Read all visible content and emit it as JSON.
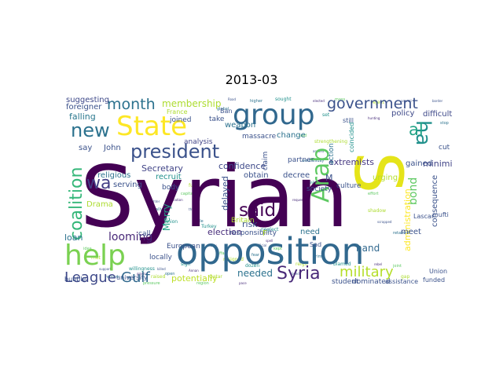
{
  "title": "2013-03",
  "palette": {
    "dark_purple": "#440154",
    "purple": "#472c7a",
    "indigo": "#3b528b",
    "blue": "#2c728e",
    "teal": "#21918c",
    "green": "#28ae80",
    "light_green": "#5ec962",
    "lime": "#addc30",
    "yellow": "#fde725"
  },
  "words": [
    {
      "text": "Syrian",
      "color": "#440154"
    },
    {
      "text": "opposition",
      "color": "#31688e"
    },
    {
      "text": "president",
      "color": "#3b528b"
    },
    {
      "text": "group",
      "color": "#31688e"
    },
    {
      "text": "State",
      "color": "#fde725"
    },
    {
      "text": "help",
      "color": "#7ad151"
    },
    {
      "text": "new",
      "color": "#2c728e"
    },
    {
      "text": "S",
      "color": "#e5e419"
    },
    {
      "text": "Arab",
      "color": "#5ec962"
    },
    {
      "text": "ha",
      "color": "#21918c"
    },
    {
      "text": "government",
      "color": "#3b528b"
    },
    {
      "text": "month",
      "color": "#2c728e"
    },
    {
      "text": "al",
      "color": "#20a386"
    },
    {
      "text": "said",
      "color": "#440154"
    },
    {
      "text": "coalition",
      "color": "#35b779"
    },
    {
      "text": "wa",
      "color": "#433e85"
    },
    {
      "text": "Syria",
      "color": "#482878"
    },
    {
      "text": "military",
      "color": "#b5de2b"
    },
    {
      "text": "League",
      "color": "#3e4989"
    },
    {
      "text": "Gulf",
      "color": "#31688e"
    },
    {
      "text": "membership",
      "color": "#addc30"
    },
    {
      "text": "bond",
      "color": "#5ec962"
    },
    {
      "text": "delayed",
      "color": "#3b528b"
    },
    {
      "text": "Merry",
      "color": "#20a386"
    },
    {
      "text": "looming",
      "color": "#482878"
    },
    {
      "text": "election",
      "color": "#472c7a"
    },
    {
      "text": "hand",
      "color": "#31688e"
    },
    {
      "text": "needed",
      "color": "#2c728e"
    },
    {
      "text": "potentially",
      "color": "#bddf26"
    },
    {
      "text": "Secretary",
      "color": "#414487"
    },
    {
      "text": "confidence",
      "color": "#3e4989"
    },
    {
      "text": "extremists",
      "color": "#453781"
    },
    {
      "text": "minimize",
      "color": "#414487"
    },
    {
      "text": "falling",
      "color": "#2a788e"
    },
    {
      "text": "suggesting",
      "color": "#3e4989"
    },
    {
      "text": "policy",
      "color": "#3e4989"
    },
    {
      "text": "difficult",
      "color": "#3e4989"
    },
    {
      "text": "change",
      "color": "#2c728e"
    },
    {
      "text": "weapon",
      "color": "#2c728e"
    },
    {
      "text": "massacre",
      "color": "#3b528b"
    },
    {
      "text": "take",
      "color": "#3b528b"
    },
    {
      "text": "John",
      "color": "#3b528b"
    },
    {
      "text": "say",
      "color": "#3b528b"
    },
    {
      "text": "analysis",
      "color": "#414487"
    },
    {
      "text": "religious",
      "color": "#2c728e"
    },
    {
      "text": "recruit",
      "color": "#21918c"
    },
    {
      "text": "serving",
      "color": "#3b528b"
    },
    {
      "text": "Drama",
      "color": "#addc30"
    },
    {
      "text": "body",
      "color": "#3b528b"
    },
    {
      "text": "decree",
      "color": "#3b528b"
    },
    {
      "text": "obtain",
      "color": "#3b528b"
    },
    {
      "text": "society",
      "color": "#3b528b"
    },
    {
      "text": "culture",
      "color": "#3b528b"
    },
    {
      "text": "risk",
      "color": "#3b528b"
    },
    {
      "text": "responsibility",
      "color": "#3b528b"
    },
    {
      "text": "claim",
      "color": "#3b528b"
    },
    {
      "text": "partner",
      "color": "#3b528b"
    },
    {
      "text": "gained",
      "color": "#3b528b"
    },
    {
      "text": "urging",
      "color": "#b5de2b"
    },
    {
      "text": "consequence",
      "color": "#3b528b"
    },
    {
      "text": "administration",
      "color": "#fde725"
    },
    {
      "text": "meet",
      "color": "#3b528b"
    },
    {
      "text": "need",
      "color": "#2c728e"
    },
    {
      "text": "Sad",
      "color": "#3b528b"
    },
    {
      "text": "cut",
      "color": "#3b528b"
    },
    {
      "text": "still",
      "color": "#3b528b"
    },
    {
      "text": "action",
      "color": "#2c728e"
    },
    {
      "text": "coincided",
      "color": "#21918c"
    },
    {
      "text": "loan",
      "color": "#2c728e"
    },
    {
      "text": "call",
      "color": "#3b528b"
    },
    {
      "text": "European",
      "color": "#3b528b"
    },
    {
      "text": "Britain",
      "color": "#addc30"
    },
    {
      "text": "locally",
      "color": "#3b528b"
    },
    {
      "text": "bubble",
      "color": "#3b528b"
    },
    {
      "text": "university",
      "color": "#3b528b"
    },
    {
      "text": "student",
      "color": "#3b528b"
    },
    {
      "text": "dominated",
      "color": "#3b528b"
    },
    {
      "text": "assistance",
      "color": "#3b528b"
    },
    {
      "text": "funded",
      "color": "#3b528b"
    },
    {
      "text": "Union",
      "color": "#3b528b"
    },
    {
      "text": "Lascar",
      "color": "#3b528b"
    },
    {
      "text": "mufti",
      "color": "#3b528b"
    },
    {
      "text": "foreigner",
      "color": "#3b528b"
    },
    {
      "text": "joined",
      "color": "#3b528b"
    },
    {
      "text": "France",
      "color": "#addc30"
    },
    {
      "text": "Ban",
      "color": "#3b528b"
    },
    {
      "text": "F",
      "color": "#b5de2b"
    },
    {
      "text": "M",
      "color": "#3b528b"
    }
  ],
  "tiny_words": [
    "Road",
    "higher",
    "sought",
    "elected",
    "mass",
    "reject",
    "prevail",
    "global",
    "set",
    "hunting",
    "said",
    "strengthening",
    "around",
    "wednesday",
    "cease",
    "request",
    "effort",
    "shadow",
    "scrapped",
    "retained",
    "neglect",
    "spell",
    "kept",
    "reign",
    "sided",
    "prime",
    "blamed",
    "rebel",
    "joint",
    "gap",
    "thwart",
    "mile",
    "Turkey",
    "tiny",
    "affair",
    "resigned",
    "official",
    "fear",
    "dozen",
    "pace",
    "idea",
    "met",
    "support",
    "remark",
    "willingness",
    "ground",
    "pressure",
    "raised",
    "killed",
    "open",
    "sign",
    "Annan",
    "region",
    "Qatar",
    "fighter",
    "ally",
    "opinion",
    "nation",
    "capital",
    "fund",
    "border",
    "stop"
  ]
}
